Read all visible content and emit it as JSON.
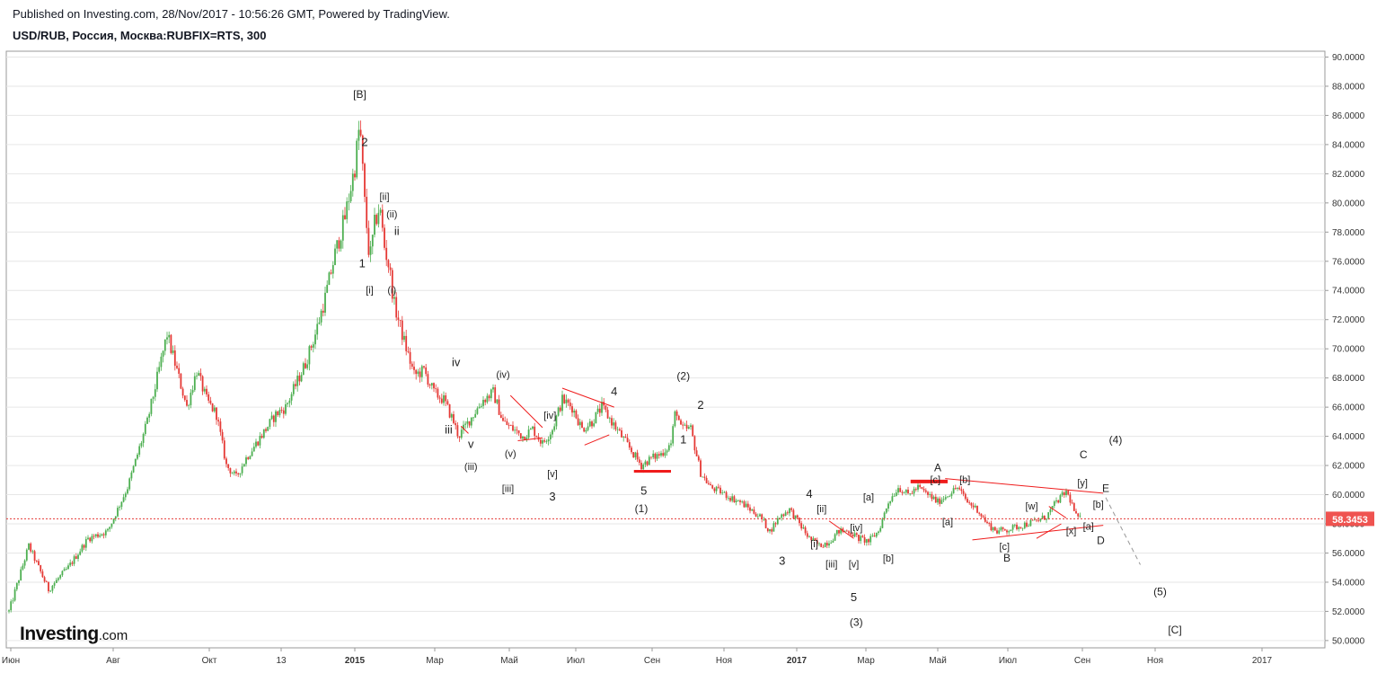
{
  "header": {
    "published": "Published on Investing.com, 28/Nov/2017 - 10:56:26 GMT, Powered by TradingView.",
    "symbol": "USD/RUB, Россия, Москва:RUBFIX=RTS, 300"
  },
  "watermark": {
    "brand": "Investing",
    "suffix": ".com"
  },
  "colors": {
    "up": "#4caf50",
    "down": "#e53935",
    "wick": "#555555",
    "trend": "#ef1c1c",
    "price_label_bg": "#ef5350",
    "axis": "#999999",
    "grid": "#e6e6e6"
  },
  "chart_data": {
    "type": "candlestick",
    "title": "USD/RUB, Россия, Москва:RUBFIX=RTS, 300",
    "ylim": [
      49.5,
      90.4
    ],
    "y_ticks": [
      "90.0000",
      "88.0000",
      "86.0000",
      "84.0000",
      "82.0000",
      "80.0000",
      "78.0000",
      "76.0000",
      "74.0000",
      "72.0000",
      "70.0000",
      "68.0000",
      "66.0000",
      "64.0000",
      "62.0000",
      "60.0000",
      "58.0000",
      "56.0000",
      "54.0000",
      "52.0000",
      "50.0000"
    ],
    "x_labels": [
      "Июн",
      "Авг",
      "Окт",
      "13",
      "2015",
      "Мар",
      "Май",
      "Июл",
      "Сен",
      "Ноя",
      "2017",
      "Мар",
      "Май",
      "Июл",
      "Сен",
      "Ноя",
      "2017"
    ],
    "bold_x_labels": [
      "2015",
      "2017"
    ],
    "last_price": {
      "value": 58.3453,
      "label": "58.3453"
    },
    "price_path": [
      [
        0,
        52.0
      ],
      [
        4,
        56.5
      ],
      [
        8,
        53.5
      ],
      [
        12,
        55.0
      ],
      [
        16,
        57.0
      ],
      [
        20,
        57.5
      ],
      [
        24,
        60.5
      ],
      [
        28,
        65.0
      ],
      [
        30,
        68.0
      ],
      [
        32,
        71.0
      ],
      [
        34,
        68.5
      ],
      [
        36,
        66.0
      ],
      [
        38,
        68.5
      ],
      [
        40,
        66.5
      ],
      [
        42,
        65.5
      ],
      [
        44,
        62.0
      ],
      [
        46,
        61.2
      ],
      [
        48,
        62.5
      ],
      [
        50,
        63.5
      ],
      [
        52,
        64.5
      ],
      [
        54,
        65.5
      ],
      [
        56,
        66.0
      ],
      [
        58,
        67.5
      ],
      [
        60,
        69.0
      ],
      [
        62,
        71.0
      ],
      [
        64,
        73.5
      ],
      [
        66,
        76.5
      ],
      [
        68,
        79.0
      ],
      [
        70,
        82.5
      ],
      [
        71,
        85.5
      ],
      [
        72,
        80.0
      ],
      [
        73,
        76.0
      ],
      [
        74,
        78.5
      ],
      [
        75,
        79.8
      ],
      [
        76,
        77.0
      ],
      [
        77,
        75.5
      ],
      [
        78,
        73.0
      ],
      [
        80,
        70.5
      ],
      [
        82,
        68.2
      ],
      [
        84,
        68.5
      ],
      [
        86,
        67.0
      ],
      [
        88,
        66.5
      ],
      [
        90,
        65.0
      ],
      [
        91,
        64.0
      ],
      [
        92,
        64.5
      ],
      [
        94,
        65.5
      ],
      [
        96,
        66.5
      ],
      [
        98,
        67.0
      ],
      [
        100,
        65.0
      ],
      [
        102,
        64.5
      ],
      [
        104,
        64.0
      ],
      [
        106,
        64.5
      ],
      [
        108,
        63.5
      ],
      [
        110,
        64.5
      ],
      [
        112,
        66.5
      ],
      [
        114,
        66.0
      ],
      [
        116,
        64.5
      ],
      [
        118,
        65.0
      ],
      [
        120,
        66.0
      ],
      [
        122,
        65.0
      ],
      [
        124,
        64.0
      ],
      [
        126,
        63.0
      ],
      [
        128,
        62.0
      ],
      [
        130,
        62.5
      ],
      [
        132,
        62.8
      ],
      [
        134,
        63.5
      ],
      [
        135,
        66.0
      ],
      [
        136,
        64.5
      ],
      [
        138,
        64.5
      ],
      [
        140,
        61.5
      ],
      [
        142,
        60.5
      ],
      [
        144,
        60.2
      ],
      [
        146,
        59.8
      ],
      [
        148,
        59.5
      ],
      [
        150,
        59.0
      ],
      [
        152,
        58.5
      ],
      [
        154,
        57.5
      ],
      [
        156,
        58.5
      ],
      [
        158,
        59.0
      ],
      [
        160,
        58.0
      ],
      [
        162,
        57.0
      ],
      [
        164,
        56.5
      ],
      [
        166,
        56.8
      ],
      [
        168,
        57.5
      ],
      [
        170,
        57.5
      ],
      [
        172,
        57.0
      ],
      [
        174,
        56.8
      ],
      [
        176,
        57.5
      ],
      [
        178,
        59.5
      ],
      [
        180,
        60.5
      ],
      [
        182,
        60.0
      ],
      [
        184,
        60.5
      ],
      [
        186,
        60.0
      ],
      [
        188,
        59.5
      ],
      [
        190,
        60.0
      ],
      [
        192,
        60.5
      ],
      [
        194,
        59.5
      ],
      [
        196,
        59.0
      ],
      [
        198,
        58.0
      ],
      [
        200,
        57.5
      ],
      [
        202,
        57.6
      ],
      [
        204,
        57.8
      ],
      [
        206,
        58.0
      ],
      [
        208,
        58.2
      ],
      [
        210,
        58.5
      ],
      [
        212,
        59.5
      ],
      [
        214,
        60.2
      ],
      [
        215,
        59.5
      ],
      [
        216,
        58.5
      ],
      [
        217,
        58.3
      ]
    ],
    "wave_labels": [
      {
        "text": "[B]",
        "x": 71,
        "y": 87.2,
        "size": 12
      },
      {
        "text": "2",
        "x": 72,
        "y": 83.9,
        "size": 13
      },
      {
        "text": "[ii]",
        "x": 76,
        "y": 80.2,
        "size": 11
      },
      {
        "text": "(ii)",
        "x": 77.5,
        "y": 79.0,
        "size": 11
      },
      {
        "text": "ii",
        "x": 78.5,
        "y": 77.8,
        "size": 13
      },
      {
        "text": "1",
        "x": 71.5,
        "y": 75.6,
        "size": 13
      },
      {
        "text": "[i]",
        "x": 73,
        "y": 73.8,
        "size": 11
      },
      {
        "text": "(i)",
        "x": 77.5,
        "y": 73.8,
        "size": 11
      },
      {
        "text": "iv",
        "x": 90.5,
        "y": 68.8,
        "size": 13
      },
      {
        "text": "(iv)",
        "x": 100,
        "y": 68.0,
        "size": 11
      },
      {
        "text": "iii",
        "x": 89,
        "y": 64.2,
        "size": 13
      },
      {
        "text": "v",
        "x": 93.5,
        "y": 63.2,
        "size": 13
      },
      {
        "text": "(iii)",
        "x": 93.5,
        "y": 61.7,
        "size": 11
      },
      {
        "text": "(v)",
        "x": 101.5,
        "y": 62.6,
        "size": 11
      },
      {
        "text": "[iii]",
        "x": 101,
        "y": 60.2,
        "size": 11
      },
      {
        "text": "[iv]",
        "x": 109.5,
        "y": 65.2,
        "size": 11
      },
      {
        "text": "[v]",
        "x": 110,
        "y": 61.2,
        "size": 11
      },
      {
        "text": "3",
        "x": 110,
        "y": 59.6,
        "size": 13
      },
      {
        "text": "4",
        "x": 122.5,
        "y": 66.8,
        "size": 13
      },
      {
        "text": "5",
        "x": 128.5,
        "y": 60.0,
        "size": 13
      },
      {
        "text": "(1)",
        "x": 128,
        "y": 58.8,
        "size": 12
      },
      {
        "text": "(2)",
        "x": 136.5,
        "y": 67.9,
        "size": 12
      },
      {
        "text": "2",
        "x": 140,
        "y": 65.9,
        "size": 13
      },
      {
        "text": "1",
        "x": 136.5,
        "y": 63.5,
        "size": 13
      },
      {
        "text": "4",
        "x": 162,
        "y": 59.8,
        "size": 13
      },
      {
        "text": "3",
        "x": 156.5,
        "y": 55.2,
        "size": 13
      },
      {
        "text": "[ii]",
        "x": 164.5,
        "y": 58.8,
        "size": 11
      },
      {
        "text": "[iv]",
        "x": 171.5,
        "y": 57.5,
        "size": 11
      },
      {
        "text": "[a]",
        "x": 174,
        "y": 59.6,
        "size": 11
      },
      {
        "text": "[i]",
        "x": 163,
        "y": 56.4,
        "size": 11
      },
      {
        "text": "[iii]",
        "x": 166.5,
        "y": 55.0,
        "size": 11
      },
      {
        "text": "[v]",
        "x": 171,
        "y": 55.0,
        "size": 11
      },
      {
        "text": "[b]",
        "x": 178,
        "y": 55.4,
        "size": 11
      },
      {
        "text": "5",
        "x": 171,
        "y": 52.7,
        "size": 13
      },
      {
        "text": "(3)",
        "x": 171.5,
        "y": 51.0,
        "size": 12
      },
      {
        "text": "A",
        "x": 188,
        "y": 61.6,
        "size": 12
      },
      {
        "text": "[c]",
        "x": 187.5,
        "y": 60.8,
        "size": 11
      },
      {
        "text": "[b]",
        "x": 193.5,
        "y": 60.8,
        "size": 11
      },
      {
        "text": "[a]",
        "x": 190,
        "y": 57.9,
        "size": 11
      },
      {
        "text": "[c]",
        "x": 201.5,
        "y": 56.2,
        "size": 11
      },
      {
        "text": "B",
        "x": 202,
        "y": 55.4,
        "size": 12
      },
      {
        "text": "[w]",
        "x": 207,
        "y": 59.0,
        "size": 11
      },
      {
        "text": "[x]",
        "x": 215,
        "y": 57.3,
        "size": 11
      },
      {
        "text": "[y]",
        "x": 217.3,
        "y": 60.6,
        "size": 11
      },
      {
        "text": "C",
        "x": 217.5,
        "y": 62.5,
        "size": 12
      },
      {
        "text": "(4)",
        "x": 224,
        "y": 63.5,
        "size": 12
      },
      {
        "text": "E",
        "x": 222,
        "y": 60.2,
        "size": 12
      },
      {
        "text": "[b]",
        "x": 220.5,
        "y": 59.1,
        "size": 11
      },
      {
        "text": "[a]",
        "x": 218.5,
        "y": 57.6,
        "size": 11
      },
      {
        "text": "D",
        "x": 221,
        "y": 56.6,
        "size": 12
      },
      {
        "text": "(5)",
        "x": 233,
        "y": 53.1,
        "size": 12
      },
      {
        "text": "[C]",
        "x": 236,
        "y": 50.5,
        "size": 12
      }
    ],
    "trendlines": [
      {
        "x1": 91.5,
        "y1": 64.7,
        "x2": 93,
        "y2": 64.2,
        "w": 1
      },
      {
        "x1": 101.5,
        "y1": 66.8,
        "x2": 108,
        "y2": 64.6,
        "w": 1
      },
      {
        "x1": 103,
        "y1": 63.7,
        "x2": 108,
        "y2": 63.9,
        "w": 1
      },
      {
        "x1": 112,
        "y1": 67.3,
        "x2": 122.5,
        "y2": 66.0,
        "w": 1
      },
      {
        "x1": 116.5,
        "y1": 63.4,
        "x2": 121.5,
        "y2": 64.1,
        "w": 1
      },
      {
        "x1": 126.5,
        "y1": 61.6,
        "x2": 134,
        "y2": 61.6,
        "w": 3
      },
      {
        "x1": 166,
        "y1": 58.2,
        "x2": 171,
        "y2": 57.0,
        "w": 1
      },
      {
        "x1": 182.5,
        "y1": 60.9,
        "x2": 190,
        "y2": 60.9,
        "w": 4
      },
      {
        "x1": 189.5,
        "y1": 61.1,
        "x2": 221.5,
        "y2": 60.1,
        "w": 1
      },
      {
        "x1": 195,
        "y1": 56.9,
        "x2": 221.5,
        "y2": 57.9,
        "w": 1
      },
      {
        "x1": 208,
        "y1": 57.0,
        "x2": 213,
        "y2": 58.0,
        "w": 1
      },
      {
        "x1": 210.5,
        "y1": 59.2,
        "x2": 214,
        "y2": 58.4,
        "w": 1
      }
    ],
    "projection": {
      "x1": 222,
      "y1": 59.8,
      "x2": 229,
      "y2": 55.2
    }
  }
}
